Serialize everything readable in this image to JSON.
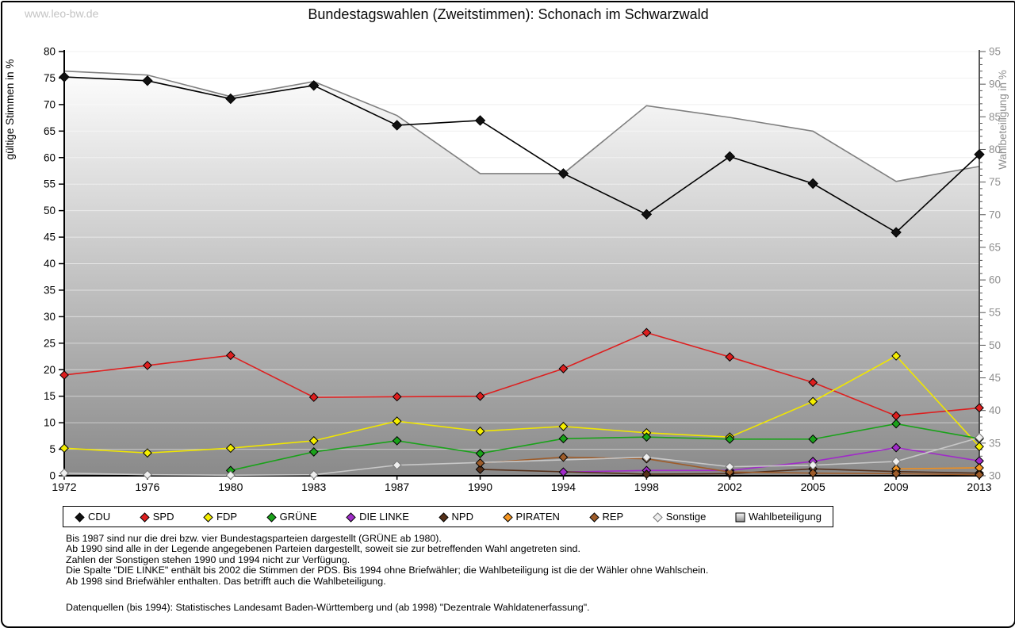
{
  "watermark": "www.leo-bw.de",
  "title": "Bundestagswahlen (Zweitstimmen): Schonach im Schwarzwald",
  "chart_data": {
    "type": "line",
    "x": [
      1972,
      1976,
      1980,
      1983,
      1987,
      1990,
      1994,
      1998,
      2002,
      2005,
      2009,
      2013
    ],
    "left_axis": {
      "label": "gültige Stimmen in %",
      "min": 0,
      "max": 80,
      "step": 5
    },
    "right_axis": {
      "label": "Wahlbeteiligung in %",
      "min": 30,
      "max": 95,
      "step": 5
    },
    "grid": true,
    "legend_position": "bottom",
    "series": [
      {
        "name": "CDU",
        "color": "#000000",
        "fill": "#111111",
        "axis": "left",
        "values": [
          75.2,
          74.5,
          71.1,
          73.6,
          66.1,
          67.0,
          57.0,
          49.3,
          60.2,
          55.1,
          45.9,
          60.6
        ]
      },
      {
        "name": "SPD",
        "color": "#dd1f1f",
        "fill": "#dd1f1f",
        "axis": "left",
        "values": [
          19.0,
          20.8,
          22.7,
          14.8,
          14.9,
          15.0,
          20.2,
          27.0,
          22.4,
          17.6,
          11.3,
          12.8
        ]
      },
      {
        "name": "FDP",
        "color": "#f0e600",
        "fill": "#f5ee00",
        "axis": "left",
        "values": [
          5.2,
          4.3,
          5.2,
          6.6,
          10.3,
          8.4,
          9.3,
          8.1,
          7.3,
          14.0,
          22.6,
          5.5
        ]
      },
      {
        "name": "GRÜNE",
        "color": "#1aa21a",
        "fill": "#1aa21a",
        "axis": "left",
        "values": [
          null,
          null,
          1.0,
          4.5,
          6.6,
          4.2,
          7.0,
          7.3,
          6.9,
          6.9,
          9.8,
          7.0
        ]
      },
      {
        "name": "DIE LINKE",
        "color": "#a02cc8",
        "fill": "#a02cc8",
        "axis": "left",
        "values": [
          null,
          null,
          null,
          null,
          null,
          null,
          0.7,
          1.0,
          1.0,
          2.7,
          5.3,
          2.8
        ]
      },
      {
        "name": "NPD",
        "color": "#55301a",
        "fill": "#55301a",
        "axis": "left",
        "values": [
          null,
          null,
          null,
          null,
          null,
          1.2,
          null,
          0.3,
          0.4,
          1.3,
          0.8,
          0.5
        ]
      },
      {
        "name": "PIRATEN",
        "color": "#ef8f1f",
        "fill": "#f59622",
        "axis": "left",
        "values": [
          null,
          null,
          null,
          null,
          null,
          null,
          null,
          null,
          null,
          null,
          1.3,
          1.5
        ]
      },
      {
        "name": "REP",
        "color": "#9e5c2a",
        "fill": "#9e5c2a",
        "axis": "left",
        "values": [
          null,
          null,
          null,
          null,
          null,
          2.4,
          3.5,
          3.2,
          0.7,
          0.5,
          0.4,
          0.2
        ]
      },
      {
        "name": "Sonstige",
        "color": "#c8c8c8",
        "fill": "#efefef",
        "axis": "left",
        "values": [
          0.5,
          0.2,
          0.1,
          0.2,
          2.0,
          null,
          null,
          3.5,
          1.7,
          2.0,
          2.7,
          7.2
        ]
      }
    ],
    "turnout": {
      "name": "Wahlbeteiligung",
      "axis": "right",
      "stroke": "#7f7f7f",
      "fill_top": "#fdfdfd",
      "fill_bottom": "#8a8a8a",
      "values": [
        92.0,
        91.4,
        88.1,
        90.4,
        85.2,
        76.3,
        76.3,
        86.7,
        84.9,
        82.8,
        75.1,
        77.4
      ]
    }
  },
  "footnotes": [
    "Bis 1987 sind nur die drei bzw. vier Bundestagsparteien dargestellt (GRÜNE ab 1980).",
    "Ab 1990 sind alle in der Legende angegebenen Parteien dargestellt, soweit sie zur betreffenden Wahl angetreten sind.",
    "Zahlen der Sonstigen stehen 1990 und 1994 nicht zur Verfügung.",
    "Die Spalte \"DIE LINKE\" enthält bis 2002 die Stimmen der PDS. Bis 1994 ohne Briefwähler; die Wahlbeteiligung ist die der Wähler ohne Wahlschein.",
    "Ab 1998 sind Briefwähler enthalten. Das betrifft auch die Wahlbeteiligung.",
    "",
    "Datenquellen (bis 1994): Statistisches Landesamt Baden-Württemberg und (ab 1998) \"Dezentrale Wahldatenerfassung\"."
  ]
}
